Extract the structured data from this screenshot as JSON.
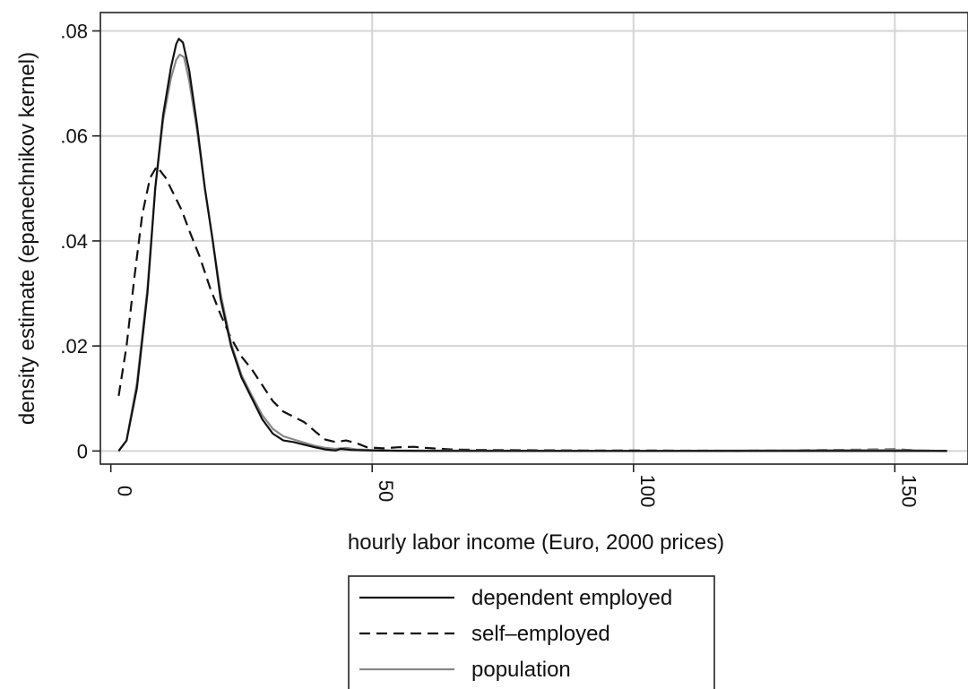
{
  "chart_data": {
    "type": "line",
    "title": "",
    "xlabel": "hourly labor income (Euro, 2000 prices)",
    "ylabel": "density estimate (epanechnikov kernel)",
    "xlim": [
      -2,
      164
    ],
    "ylim": [
      -0.0025,
      0.0835
    ],
    "x_ticks": [
      0,
      50,
      100,
      150
    ],
    "x_tick_labels": [
      "0",
      "50",
      "100",
      "150"
    ],
    "y_ticks": [
      0,
      0.02,
      0.04,
      0.06,
      0.08
    ],
    "y_tick_labels": [
      "0",
      ".02",
      ".04",
      ".06",
      ".08"
    ],
    "grid": true,
    "legend_position": "bottom",
    "series": [
      {
        "name": "dependent employed",
        "color": "#111111",
        "dash": "solid",
        "points": [
          [
            1.5,
            0
          ],
          [
            3,
            0.002
          ],
          [
            5,
            0.012
          ],
          [
            7,
            0.03
          ],
          [
            8.5,
            0.05
          ],
          [
            10,
            0.064
          ],
          [
            11.5,
            0.073
          ],
          [
            12.5,
            0.0775
          ],
          [
            13,
            0.0785
          ],
          [
            13.8,
            0.0778
          ],
          [
            15,
            0.0725
          ],
          [
            16.5,
            0.062
          ],
          [
            18,
            0.05
          ],
          [
            19.5,
            0.04
          ],
          [
            21,
            0.029
          ],
          [
            23,
            0.02
          ],
          [
            25,
            0.014
          ],
          [
            27,
            0.01
          ],
          [
            29,
            0.006
          ],
          [
            31,
            0.0033
          ],
          [
            33,
            0.002
          ],
          [
            35,
            0.0017
          ],
          [
            37,
            0.0012
          ],
          [
            39,
            0.0007
          ],
          [
            41,
            0.0003
          ],
          [
            43,
            0.0001
          ],
          [
            44,
            0.0004
          ],
          [
            46,
            0.0002
          ],
          [
            50,
            0.0001
          ],
          [
            55,
            5e-05
          ],
          [
            60,
            0
          ],
          [
            100,
            0
          ],
          [
            160,
            0
          ]
        ]
      },
      {
        "name": "self–employed",
        "color": "#111111",
        "dash": "dashed",
        "points": [
          [
            1.5,
            0.0105
          ],
          [
            3,
            0.02
          ],
          [
            4.5,
            0.033
          ],
          [
            6,
            0.045
          ],
          [
            7.5,
            0.052
          ],
          [
            8.8,
            0.0542
          ],
          [
            10.5,
            0.052
          ],
          [
            12,
            0.049
          ],
          [
            13.5,
            0.046
          ],
          [
            15,
            0.042
          ],
          [
            17,
            0.037
          ],
          [
            19,
            0.031
          ],
          [
            21,
            0.026
          ],
          [
            23,
            0.0215
          ],
          [
            25,
            0.018
          ],
          [
            27,
            0.0155
          ],
          [
            29,
            0.0125
          ],
          [
            31,
            0.0095
          ],
          [
            33,
            0.0075
          ],
          [
            35,
            0.0065
          ],
          [
            37,
            0.0055
          ],
          [
            39,
            0.0038
          ],
          [
            41,
            0.0022
          ],
          [
            43,
            0.0017
          ],
          [
            45,
            0.002
          ],
          [
            47,
            0.0015
          ],
          [
            49,
            0.0007
          ],
          [
            52,
            0.0005
          ],
          [
            55,
            0.0007
          ],
          [
            58,
            0.0008
          ],
          [
            60,
            0.0006
          ],
          [
            65,
            0.0003
          ],
          [
            70,
            0.0002
          ],
          [
            80,
            0.00015
          ],
          [
            90,
            0.0001
          ],
          [
            100,
            0.0001
          ],
          [
            120,
            5e-05
          ],
          [
            150,
            0.0003
          ],
          [
            155,
            0.0001
          ],
          [
            160,
            0
          ]
        ]
      },
      {
        "name": "population",
        "color": "#888888",
        "dash": "solid",
        "points": [
          [
            1.5,
            0
          ],
          [
            3,
            0.002
          ],
          [
            5,
            0.013
          ],
          [
            7,
            0.031
          ],
          [
            8.5,
            0.05
          ],
          [
            10,
            0.063
          ],
          [
            11.5,
            0.071
          ],
          [
            12.5,
            0.0745
          ],
          [
            13.2,
            0.0755
          ],
          [
            14,
            0.075
          ],
          [
            15,
            0.0705
          ],
          [
            16.5,
            0.061
          ],
          [
            18,
            0.05
          ],
          [
            19.5,
            0.04
          ],
          [
            21,
            0.03
          ],
          [
            23,
            0.0205
          ],
          [
            25,
            0.0145
          ],
          [
            27,
            0.0105
          ],
          [
            29,
            0.0068
          ],
          [
            31,
            0.0042
          ],
          [
            33,
            0.0028
          ],
          [
            35,
            0.0022
          ],
          [
            37,
            0.0016
          ],
          [
            39,
            0.001
          ],
          [
            41,
            0.0006
          ],
          [
            43,
            0.0004
          ],
          [
            45,
            0.0006
          ],
          [
            47,
            0.0003
          ],
          [
            50,
            0.0002
          ],
          [
            55,
            0.0001
          ],
          [
            60,
            0.0001
          ],
          [
            100,
            0
          ],
          [
            150,
            0.0002
          ],
          [
            160,
            0
          ]
        ]
      }
    ]
  }
}
